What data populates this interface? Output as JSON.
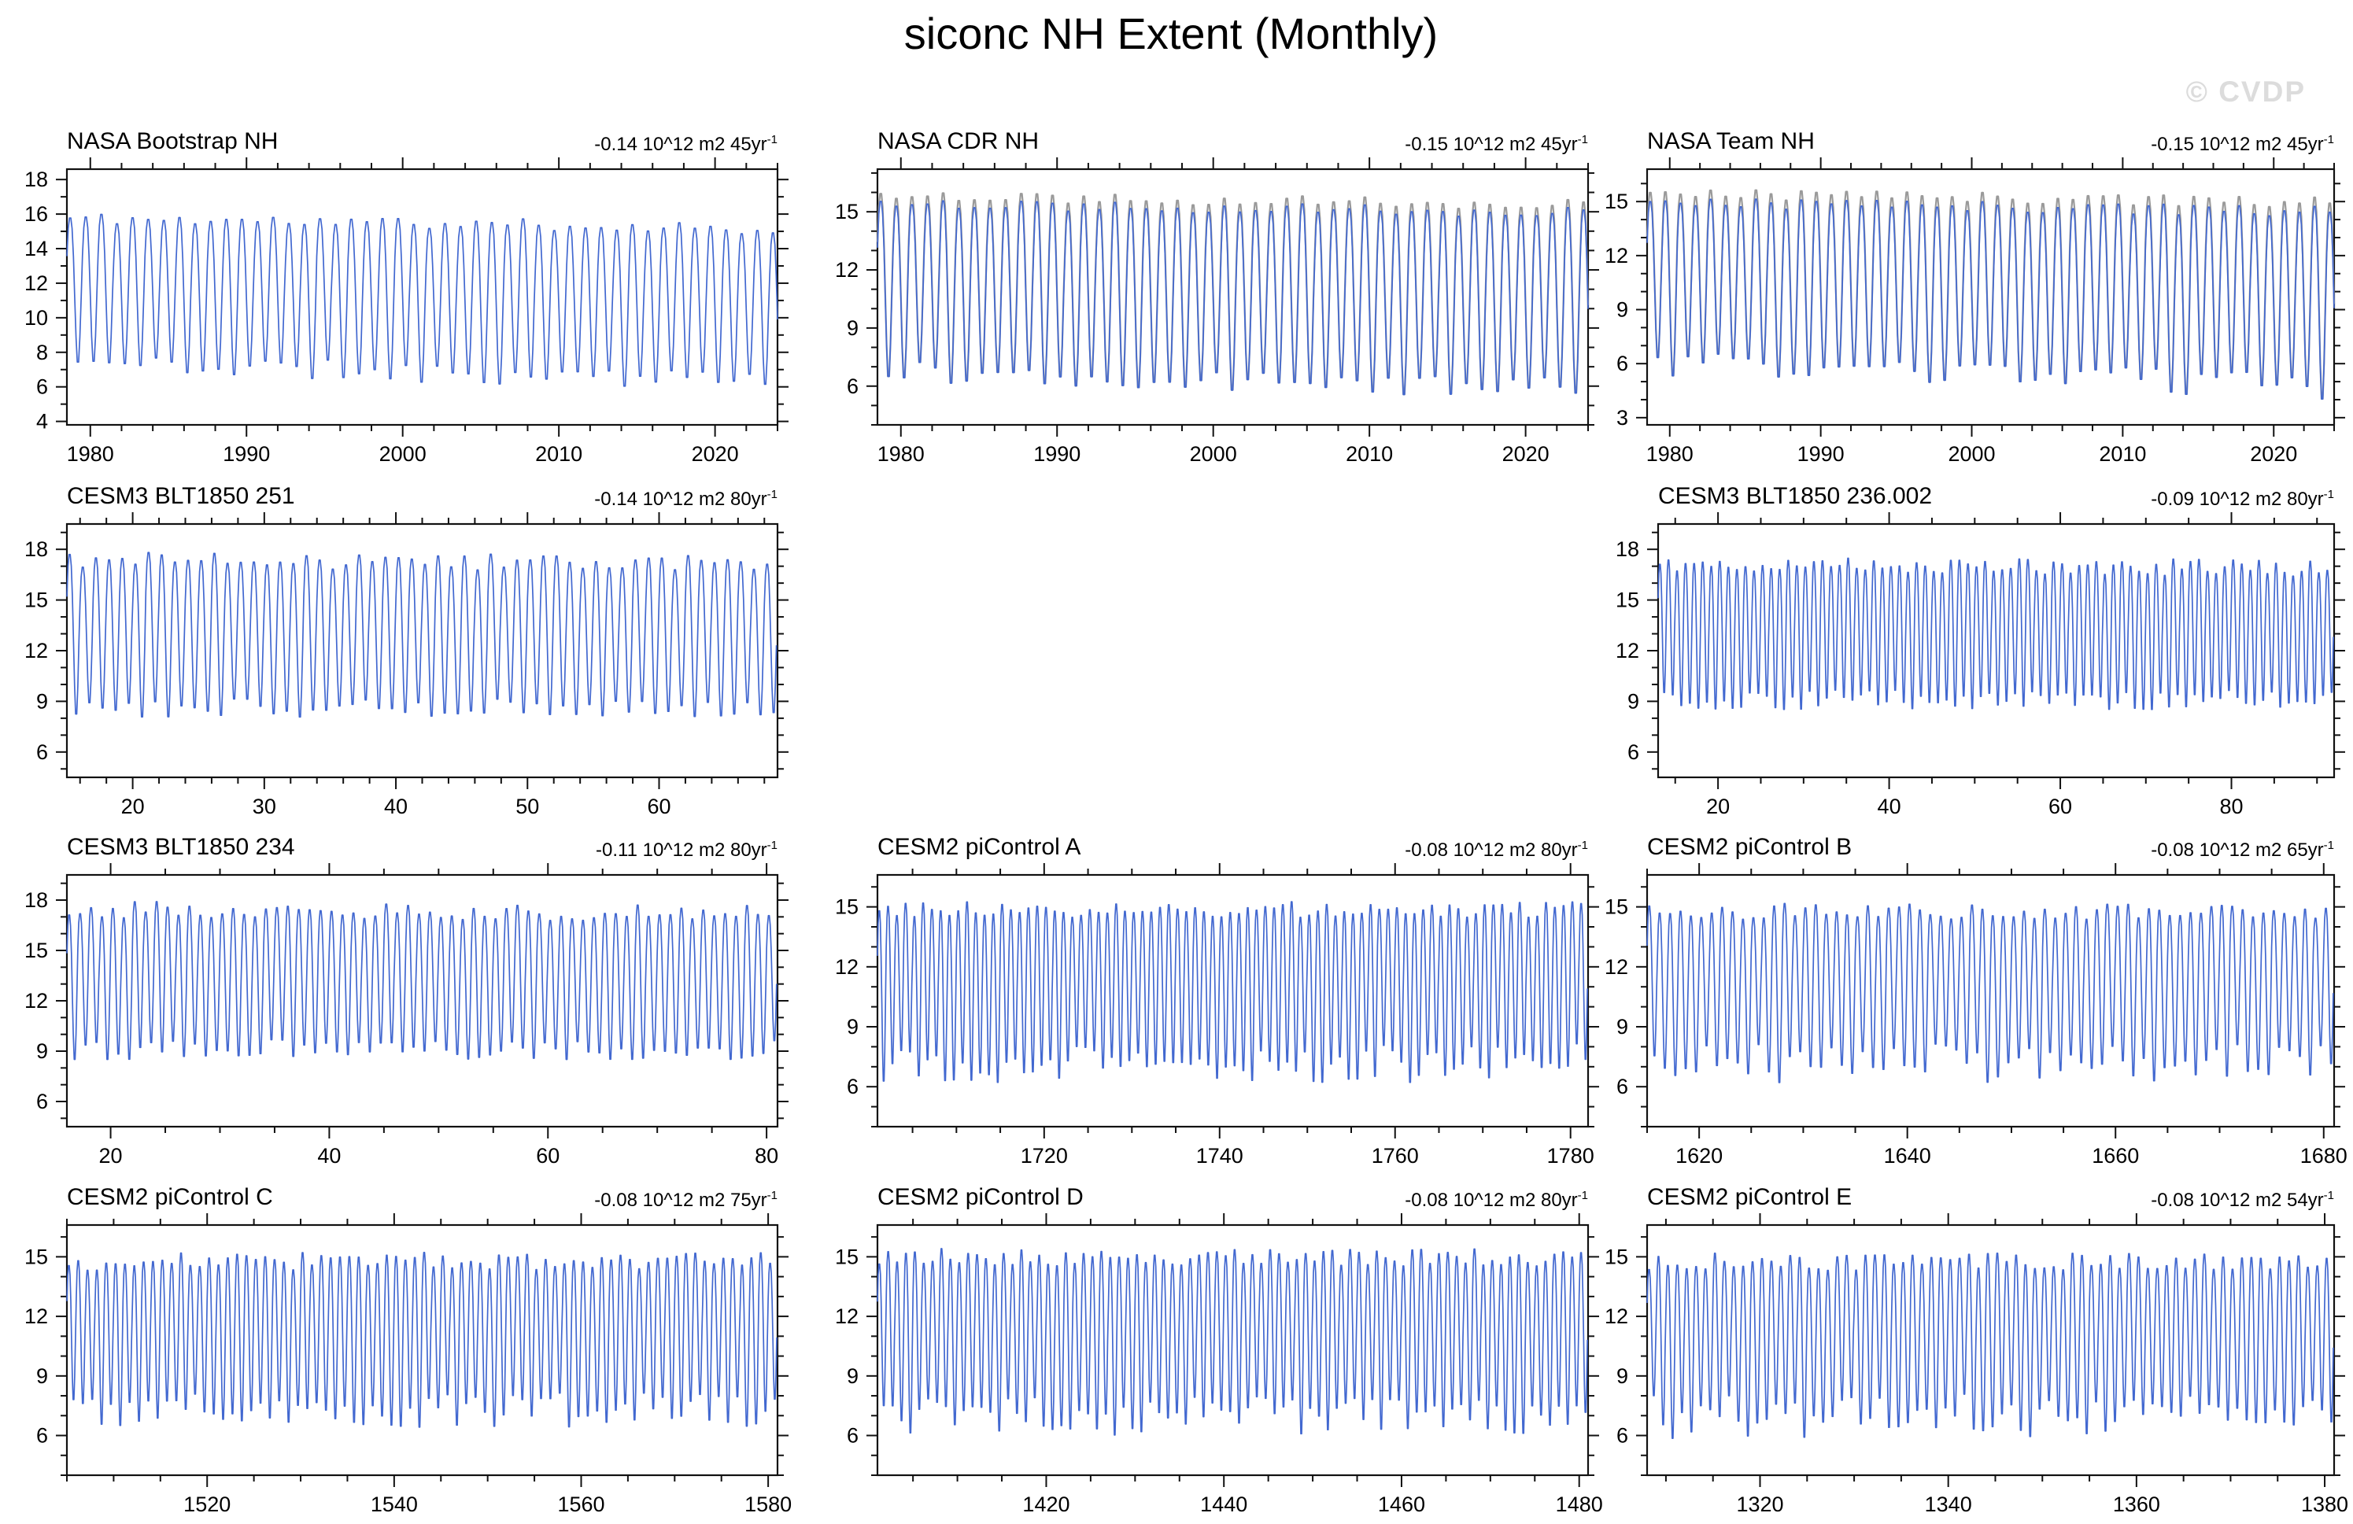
{
  "page": {
    "title": "siconc NH Extent (Monthly)",
    "watermark": "© CVDP"
  },
  "colors": {
    "line": "#4268d0",
    "overlay": "#9a9a9a",
    "frame": "#111111",
    "watermark": "#dcdcdc"
  },
  "chart_data": [
    {
      "type": "line",
      "title": "NASA Bootstrap NH",
      "trend": {
        "text": "-0.14 10^12 m2 45yr",
        "sup": "-1"
      },
      "x_ticks": [
        1980,
        1990,
        2000,
        2010,
        2020
      ],
      "x_minor_step": 2,
      "x_range": [
        1978.5,
        2024
      ],
      "y_ticks": [
        4,
        6,
        8,
        10,
        12,
        14,
        16,
        18
      ],
      "y_minor_step": 1,
      "y_range": [
        3.8,
        18.6
      ],
      "envelope": {
        "seasonal_max_start": 15.8,
        "max_trend": -0.6,
        "max_jitter": 0.35,
        "seasonal_min_start": 7.2,
        "min_trend": -1.2,
        "min_jitter": 0.6,
        "overlay_gray": false,
        "seed": 11
      }
    },
    {
      "type": "line",
      "title": "NASA CDR NH",
      "trend": {
        "text": "-0.15 10^12 m2 45yr",
        "sup": "-1"
      },
      "x_ticks": [
        1980,
        1990,
        2000,
        2010,
        2020
      ],
      "x_minor_step": 2,
      "x_range": [
        1978.5,
        2024
      ],
      "y_ticks": [
        6,
        9,
        12,
        15
      ],
      "y_minor_step": 1,
      "y_range": [
        4.0,
        17.2
      ],
      "envelope": {
        "seasonal_max_start": 15.5,
        "max_trend": -0.5,
        "max_jitter": 0.3,
        "seasonal_min_start": 6.6,
        "min_trend": -1.0,
        "min_jitter": 0.6,
        "overlay_gray": true,
        "overlay_peak_offset": 0.4,
        "seed": 22
      }
    },
    {
      "type": "line",
      "title": "NASA Team NH",
      "trend": {
        "text": "-0.15 10^12 m2 45yr",
        "sup": "-1"
      },
      "x_ticks": [
        1980,
        1990,
        2000,
        2010,
        2020
      ],
      "x_minor_step": 2,
      "x_range": [
        1978.5,
        2024
      ],
      "y_ticks": [
        3,
        6,
        9,
        12,
        15
      ],
      "y_minor_step": 1,
      "y_range": [
        2.6,
        16.8
      ],
      "envelope": {
        "seasonal_max_start": 15.0,
        "max_trend": -0.5,
        "max_jitter": 0.35,
        "seasonal_min_start": 5.8,
        "min_trend": -1.4,
        "min_jitter": 0.7,
        "overlay_gray": true,
        "overlay_peak_offset": 0.5,
        "seed": 33
      }
    },
    {
      "type": "line",
      "title": "CESM3 BLT1850 251",
      "trend": {
        "text": "-0.14 10^12 m2 80yr",
        "sup": "-1"
      },
      "x_ticks": [
        20,
        30,
        40,
        50,
        60
      ],
      "x_minor_step": 2,
      "x_range": [
        15,
        69
      ],
      "y_ticks": [
        6,
        9,
        12,
        15,
        18
      ],
      "y_minor_step": 1,
      "y_range": [
        4.5,
        19.5
      ],
      "envelope": {
        "seasonal_max_start": 17.4,
        "max_trend": -0.2,
        "max_jitter": 0.5,
        "seasonal_min_start": 8.4,
        "min_trend": 0,
        "min_jitter": 0.55,
        "overlay_gray": false,
        "seed": 44
      }
    },
    {
      "type": "line",
      "title": "CESM3 BLT1850 236.002",
      "trend": {
        "text": "-0.09 10^12 m2 80yr",
        "sup": "-1"
      },
      "x_ticks": [
        20,
        40,
        60,
        80
      ],
      "x_minor_step": 5,
      "x_range": [
        13,
        92
      ],
      "y_ticks": [
        6,
        9,
        12,
        15,
        18
      ],
      "y_minor_step": 1,
      "y_range": [
        4.5,
        19.5
      ],
      "envelope": {
        "seasonal_max_start": 17.2,
        "max_trend": -0.3,
        "max_jitter": 0.5,
        "seasonal_min_start": 8.9,
        "min_trend": 0,
        "min_jitter": 0.6,
        "overlay_gray": false,
        "seed": 55
      }
    },
    {
      "type": "line",
      "title": "CESM3 BLT1850 234",
      "trend": {
        "text": "-0.11 10^12 m2 80yr",
        "sup": "-1"
      },
      "x_ticks": [
        20,
        40,
        60,
        80
      ],
      "x_minor_step": 5,
      "x_range": [
        16,
        81
      ],
      "y_ticks": [
        6,
        9,
        12,
        15,
        18
      ],
      "y_minor_step": 1,
      "y_range": [
        4.5,
        19.5
      ],
      "envelope": {
        "seasonal_max_start": 17.5,
        "max_trend": -0.3,
        "max_jitter": 0.5,
        "seasonal_min_start": 8.9,
        "min_trend": 0,
        "min_jitter": 0.6,
        "overlay_gray": false,
        "seed": 66
      }
    },
    {
      "type": "line",
      "title": "CESM2 piControl A",
      "trend": {
        "text": "-0.08 10^12 m2 80yr",
        "sup": "-1"
      },
      "x_ticks": [
        1720,
        1740,
        1760,
        1780
      ],
      "x_minor_step": 5,
      "x_range": [
        1701,
        1782
      ],
      "y_ticks": [
        6,
        9,
        12,
        15
      ],
      "y_minor_step": 1,
      "y_range": [
        4.0,
        16.6
      ],
      "envelope": {
        "seasonal_max_start": 14.9,
        "max_trend": 0,
        "max_jitter": 0.4,
        "seasonal_min_start": 7.0,
        "min_trend": 0,
        "min_jitter": 1.0,
        "overlay_gray": false,
        "seed": 77
      }
    },
    {
      "type": "line",
      "title": "CESM2 piControl B",
      "trend": {
        "text": "-0.08 10^12 m2 65yr",
        "sup": "-1"
      },
      "x_ticks": [
        1620,
        1640,
        1660,
        1680
      ],
      "x_minor_step": 5,
      "x_range": [
        1615,
        1681
      ],
      "y_ticks": [
        6,
        9,
        12,
        15
      ],
      "y_minor_step": 1,
      "y_range": [
        4.0,
        16.6
      ],
      "envelope": {
        "seasonal_max_start": 14.8,
        "max_trend": 0,
        "max_jitter": 0.4,
        "seasonal_min_start": 7.0,
        "min_trend": 0,
        "min_jitter": 1.0,
        "overlay_gray": false,
        "seed": 88
      }
    },
    {
      "type": "line",
      "title": "CESM2 piControl C",
      "trend": {
        "text": "-0.08 10^12 m2 75yr",
        "sup": "-1"
      },
      "x_ticks": [
        1520,
        1540,
        1560,
        1580
      ],
      "x_minor_step": 5,
      "x_range": [
        1505,
        1581
      ],
      "y_ticks": [
        6,
        9,
        12,
        15
      ],
      "y_minor_step": 1,
      "y_range": [
        4.0,
        16.6
      ],
      "envelope": {
        "seasonal_max_start": 14.8,
        "max_trend": 0,
        "max_jitter": 0.45,
        "seasonal_min_start": 7.1,
        "min_trend": 0,
        "min_jitter": 0.9,
        "overlay_gray": false,
        "seed": 99
      }
    },
    {
      "type": "line",
      "title": "CESM2 piControl D",
      "trend": {
        "text": "-0.08 10^12 m2 80yr",
        "sup": "-1"
      },
      "x_ticks": [
        1420,
        1440,
        1460,
        1480
      ],
      "x_minor_step": 5,
      "x_range": [
        1401,
        1481
      ],
      "y_ticks": [
        6,
        9,
        12,
        15
      ],
      "y_minor_step": 1,
      "y_range": [
        4.0,
        16.6
      ],
      "envelope": {
        "seasonal_max_start": 15.0,
        "max_trend": 0,
        "max_jitter": 0.45,
        "seasonal_min_start": 6.8,
        "min_trend": 0,
        "min_jitter": 1.0,
        "overlay_gray": false,
        "seed": 110
      }
    },
    {
      "type": "line",
      "title": "CESM2 piControl E",
      "trend": {
        "text": "-0.08 10^12 m2 54yr",
        "sup": "-1"
      },
      "x_ticks": [
        1320,
        1340,
        1360,
        1380
      ],
      "x_minor_step": 5,
      "x_range": [
        1308,
        1381
      ],
      "y_ticks": [
        6,
        9,
        12,
        15
      ],
      "y_minor_step": 1,
      "y_range": [
        4.0,
        16.6
      ],
      "envelope": {
        "seasonal_max_start": 14.8,
        "max_trend": 0,
        "max_jitter": 0.45,
        "seasonal_min_start": 6.8,
        "min_trend": 0,
        "min_jitter": 1.15,
        "overlay_gray": false,
        "seed": 121
      }
    }
  ]
}
